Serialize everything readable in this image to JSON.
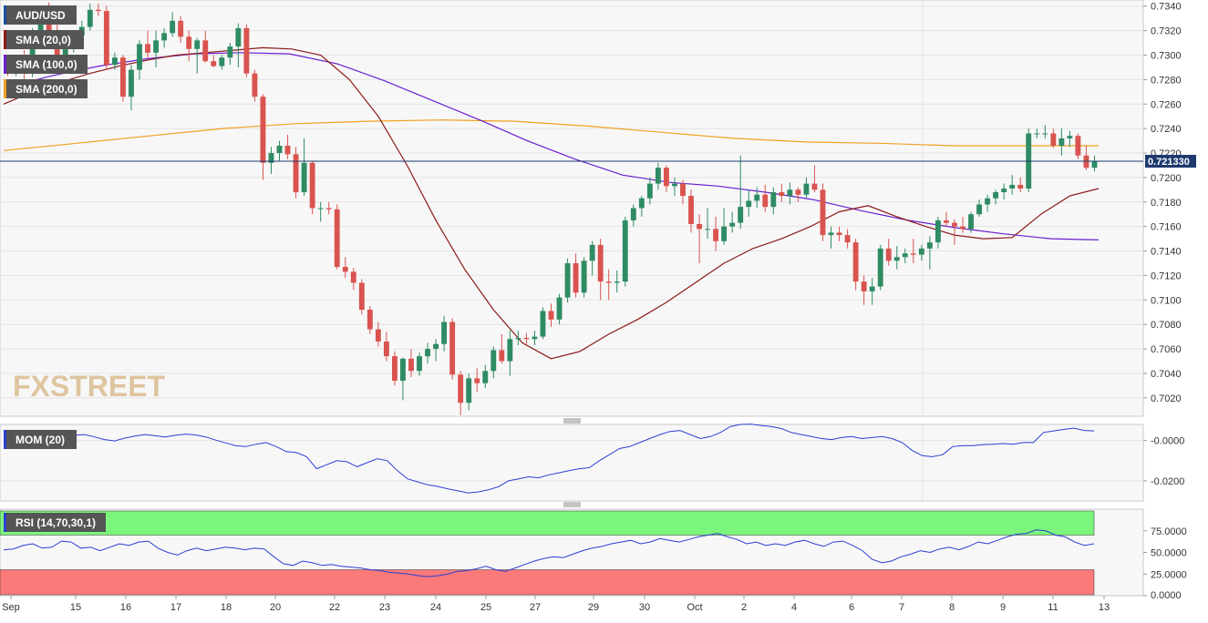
{
  "chart_data": [
    {
      "type": "candlestick",
      "symbol_label": "AUD/USD",
      "ylim": [
        0.7005,
        0.7345
      ],
      "yticks": [
        "0.7340",
        "0.7320",
        "0.7300",
        "0.7280",
        "0.7260",
        "0.7240",
        "0.7220",
        "0.7200",
        "0.7180",
        "0.7160",
        "0.7140",
        "0.7120",
        "0.7100",
        "0.7080",
        "0.7060",
        "0.7040",
        "0.7020"
      ],
      "current_price": 0.72133,
      "current_price_label": "0.721330",
      "watermark": "FXSTREET",
      "indicators": [
        {
          "name": "SMA (20,0)",
          "color": "#8b1a1a"
        },
        {
          "name": "SMA (100,0)",
          "color": "#6a1fd1"
        },
        {
          "name": "SMA (200,0)",
          "color": "#f0a020"
        }
      ],
      "candles": [
        [
          0.729,
          0.7296,
          0.7283,
          0.7287
        ],
        [
          0.7287,
          0.73,
          0.7283,
          0.7295
        ],
        [
          0.7295,
          0.7304,
          0.728,
          0.7285
        ],
        [
          0.7285,
          0.7322,
          0.7282,
          0.7318
        ],
        [
          0.7318,
          0.733,
          0.7315,
          0.7327
        ],
        [
          0.7327,
          0.7343,
          0.7315,
          0.7317
        ],
        [
          0.7317,
          0.7325,
          0.7298,
          0.73
        ],
        [
          0.73,
          0.7312,
          0.7294,
          0.7306
        ],
        [
          0.7306,
          0.732,
          0.7302,
          0.7316
        ],
        [
          0.7316,
          0.7328,
          0.731,
          0.7323
        ],
        [
          0.7323,
          0.7342,
          0.732,
          0.7337
        ],
        [
          0.7337,
          0.7342,
          0.7332,
          0.7336
        ],
        [
          0.7336,
          0.734,
          0.7288,
          0.7292
        ],
        [
          0.7292,
          0.7302,
          0.7288,
          0.7298
        ],
        [
          0.7298,
          0.73,
          0.7262,
          0.7266
        ],
        [
          0.7266,
          0.7292,
          0.7255,
          0.7288
        ],
        [
          0.7288,
          0.7312,
          0.728,
          0.7309
        ],
        [
          0.7309,
          0.732,
          0.7298,
          0.7302
        ],
        [
          0.7302,
          0.732,
          0.729,
          0.7312
        ],
        [
          0.7312,
          0.7322,
          0.7306,
          0.7318
        ],
        [
          0.7318,
          0.7335,
          0.7315,
          0.7328
        ],
        [
          0.7328,
          0.7332,
          0.731,
          0.7315
        ],
        [
          0.7315,
          0.732,
          0.7295,
          0.7305
        ],
        [
          0.7305,
          0.7314,
          0.7285,
          0.7312
        ],
        [
          0.7312,
          0.732,
          0.7294,
          0.7295
        ],
        [
          0.7295,
          0.73,
          0.729,
          0.7291
        ],
        [
          0.7291,
          0.73,
          0.7288,
          0.7298
        ],
        [
          0.7298,
          0.731,
          0.7292,
          0.7307
        ],
        [
          0.7307,
          0.7326,
          0.729,
          0.7322
        ],
        [
          0.7322,
          0.7325,
          0.7282,
          0.7285
        ],
        [
          0.7285,
          0.7288,
          0.7262,
          0.7266
        ],
        [
          0.7266,
          0.7268,
          0.7198,
          0.7212
        ],
        [
          0.7212,
          0.7225,
          0.7203,
          0.722
        ],
        [
          0.722,
          0.723,
          0.7213,
          0.7226
        ],
        [
          0.7226,
          0.7235,
          0.7215,
          0.7219
        ],
        [
          0.7219,
          0.7225,
          0.7183,
          0.7188
        ],
        [
          0.7188,
          0.7232,
          0.7185,
          0.7212
        ],
        [
          0.7212,
          0.7213,
          0.717,
          0.7175
        ],
        [
          0.7175,
          0.718,
          0.7164,
          0.7175
        ],
        [
          0.7175,
          0.718,
          0.717,
          0.7174
        ],
        [
          0.7174,
          0.7178,
          0.7125,
          0.7127
        ],
        [
          0.7127,
          0.7135,
          0.7118,
          0.7123
        ],
        [
          0.7123,
          0.7126,
          0.7108,
          0.7114
        ],
        [
          0.7114,
          0.7117,
          0.7088,
          0.7092
        ],
        [
          0.7092,
          0.7095,
          0.7072,
          0.7076
        ],
        [
          0.7076,
          0.7082,
          0.7062,
          0.7066
        ],
        [
          0.7066,
          0.7074,
          0.705,
          0.7054
        ],
        [
          0.7054,
          0.7058,
          0.703,
          0.7034
        ],
        [
          0.7034,
          0.7053,
          0.7018,
          0.7052
        ],
        [
          0.7052,
          0.706,
          0.7037,
          0.7042
        ],
        [
          0.7042,
          0.7057,
          0.7038,
          0.7054
        ],
        [
          0.7054,
          0.7065,
          0.7048,
          0.706
        ],
        [
          0.706,
          0.7068,
          0.705,
          0.7064
        ],
        [
          0.7064,
          0.7087,
          0.7058,
          0.7082
        ],
        [
          0.7082,
          0.7085,
          0.7035,
          0.7039
        ],
        [
          0.7039,
          0.7042,
          0.7006,
          0.7016
        ],
        [
          0.7016,
          0.704,
          0.701,
          0.7036
        ],
        [
          0.7036,
          0.7044,
          0.7025,
          0.7032
        ],
        [
          0.7032,
          0.7047,
          0.7028,
          0.7042
        ],
        [
          0.7042,
          0.7062,
          0.7036,
          0.7059
        ],
        [
          0.7059,
          0.7072,
          0.7048,
          0.705
        ],
        [
          0.705,
          0.7075,
          0.7038,
          0.7068
        ],
        [
          0.7068,
          0.7075,
          0.7063,
          0.7069
        ],
        [
          0.7069,
          0.7073,
          0.7064,
          0.7068
        ],
        [
          0.7068,
          0.7075,
          0.7063,
          0.707
        ],
        [
          0.707,
          0.7094,
          0.7068,
          0.7091
        ],
        [
          0.7091,
          0.7097,
          0.7078,
          0.7084
        ],
        [
          0.7084,
          0.7105,
          0.708,
          0.7102
        ],
        [
          0.7102,
          0.7134,
          0.7098,
          0.713
        ],
        [
          0.713,
          0.7138,
          0.7102,
          0.7106
        ],
        [
          0.7106,
          0.7135,
          0.7102,
          0.7132
        ],
        [
          0.7132,
          0.7148,
          0.712,
          0.7145
        ],
        [
          0.7145,
          0.715,
          0.71,
          0.7115
        ],
        [
          0.7115,
          0.7125,
          0.71,
          0.7114
        ],
        [
          0.7114,
          0.7124,
          0.7106,
          0.7115
        ],
        [
          0.7115,
          0.7168,
          0.7111,
          0.7165
        ],
        [
          0.7165,
          0.7178,
          0.716,
          0.7175
        ],
        [
          0.7175,
          0.7185,
          0.7168,
          0.7183
        ],
        [
          0.7183,
          0.72,
          0.7178,
          0.7195
        ],
        [
          0.7195,
          0.7212,
          0.719,
          0.7208
        ],
        [
          0.7208,
          0.721,
          0.7188,
          0.7193
        ],
        [
          0.7193,
          0.72,
          0.7185,
          0.7195
        ],
        [
          0.7195,
          0.7198,
          0.7178,
          0.7185
        ],
        [
          0.7185,
          0.719,
          0.7155,
          0.7162
        ],
        [
          0.7162,
          0.717,
          0.713,
          0.7158
        ],
        [
          0.7158,
          0.7175,
          0.715,
          0.7158
        ],
        [
          0.7158,
          0.7168,
          0.714,
          0.7148
        ],
        [
          0.7148,
          0.7175,
          0.7145,
          0.716
        ],
        [
          0.716,
          0.7172,
          0.7155,
          0.7163
        ],
        [
          0.7163,
          0.7218,
          0.7158,
          0.7176
        ],
        [
          0.7176,
          0.719,
          0.7168,
          0.7181
        ],
        [
          0.7181,
          0.7192,
          0.7175,
          0.7186
        ],
        [
          0.7186,
          0.7194,
          0.7172,
          0.7176
        ],
        [
          0.7176,
          0.7192,
          0.717,
          0.7188
        ],
        [
          0.7188,
          0.7195,
          0.718,
          0.7185
        ],
        [
          0.7185,
          0.7196,
          0.7178,
          0.719
        ],
        [
          0.719,
          0.7192,
          0.718,
          0.7186
        ],
        [
          0.7186,
          0.72,
          0.7183,
          0.7195
        ],
        [
          0.7195,
          0.721,
          0.7188,
          0.719
        ],
        [
          0.719,
          0.7195,
          0.7148,
          0.7153
        ],
        [
          0.7153,
          0.716,
          0.7142,
          0.7155
        ],
        [
          0.7155,
          0.716,
          0.7148,
          0.7153
        ],
        [
          0.7153,
          0.7158,
          0.7142,
          0.7147
        ],
        [
          0.7147,
          0.715,
          0.7108,
          0.7115
        ],
        [
          0.7115,
          0.712,
          0.7096,
          0.7107
        ],
        [
          0.7107,
          0.7118,
          0.7096,
          0.7111
        ],
        [
          0.7111,
          0.7145,
          0.7108,
          0.7142
        ],
        [
          0.7142,
          0.715,
          0.7128,
          0.7132
        ],
        [
          0.7132,
          0.7144,
          0.7125,
          0.7135
        ],
        [
          0.7135,
          0.7142,
          0.713,
          0.7138
        ],
        [
          0.7138,
          0.715,
          0.713,
          0.7137
        ],
        [
          0.7137,
          0.7145,
          0.7132,
          0.7142
        ],
        [
          0.7142,
          0.7152,
          0.7125,
          0.7147
        ],
        [
          0.7147,
          0.7168,
          0.7142,
          0.7165
        ],
        [
          0.7165,
          0.7172,
          0.716,
          0.7163
        ],
        [
          0.7163,
          0.7166,
          0.7145,
          0.716
        ],
        [
          0.716,
          0.7168,
          0.7155,
          0.7158
        ],
        [
          0.7158,
          0.7172,
          0.7155,
          0.717
        ],
        [
          0.717,
          0.7182,
          0.7168,
          0.7178
        ],
        [
          0.7178,
          0.7186,
          0.7172,
          0.7183
        ],
        [
          0.7183,
          0.719,
          0.7178,
          0.7188
        ],
        [
          0.7188,
          0.7195,
          0.7182,
          0.7191
        ],
        [
          0.7191,
          0.7202,
          0.7186,
          0.7194
        ],
        [
          0.7194,
          0.72,
          0.7188,
          0.7191
        ],
        [
          0.7191,
          0.724,
          0.7188,
          0.7236
        ],
        [
          0.7236,
          0.724,
          0.7232,
          0.7236
        ],
        [
          0.7236,
          0.7243,
          0.7232,
          0.7236
        ],
        [
          0.7236,
          0.724,
          0.7224,
          0.7226
        ],
        [
          0.7226,
          0.724,
          0.7218,
          0.7232
        ],
        [
          0.7232,
          0.7238,
          0.7225,
          0.7234
        ],
        [
          0.7234,
          0.7236,
          0.7215,
          0.7218
        ],
        [
          0.7218,
          0.7226,
          0.7206,
          0.7208
        ],
        [
          0.7208,
          0.7218,
          0.7205,
          0.7213
        ]
      ],
      "sma20": [
        0.726,
        0.727,
        0.7278,
        0.7285,
        0.7291,
        0.7296,
        0.73,
        0.7302,
        0.7304,
        0.7306,
        0.7305,
        0.73,
        0.728,
        0.725,
        0.721,
        0.7165,
        0.7125,
        0.7092,
        0.7065,
        0.7052,
        0.7058,
        0.7072,
        0.7084,
        0.7098,
        0.7114,
        0.713,
        0.7142,
        0.715,
        0.716,
        0.7172,
        0.7177,
        0.7168,
        0.716,
        0.7153,
        0.715,
        0.7151,
        0.717,
        0.7185,
        0.7191
      ],
      "sma100": [
        0.7273,
        0.7283,
        0.7291,
        0.7297,
        0.7301,
        0.7302,
        0.7301,
        0.7293,
        0.7279,
        0.7263,
        0.7247,
        0.723,
        0.7215,
        0.7202,
        0.7196,
        0.7193,
        0.7188,
        0.7182,
        0.7173,
        0.7165,
        0.7159,
        0.7154,
        0.715,
        0.7149
      ],
      "sma200": [
        0.7222,
        0.7228,
        0.7234,
        0.724,
        0.7244,
        0.7246,
        0.7247,
        0.7246,
        0.7242,
        0.7237,
        0.7232,
        0.7229,
        0.7228,
        0.7226,
        0.7226,
        0.7226
      ],
      "days": [
        "Sep",
        "15",
        "16",
        "17",
        "18",
        "20",
        "22",
        "23",
        "24",
        "25",
        "27",
        "29",
        "30",
        "Oct",
        "2",
        "4",
        "6",
        "7",
        "8",
        "9",
        "11",
        "13"
      ]
    },
    {
      "type": "line",
      "name": "MOM (20)",
      "ylim": [
        -0.03,
        0.008
      ],
      "yticks": [
        "-0.0000",
        "-0.0200"
      ],
      "values": [
        0.001,
        0.002,
        0.0012,
        0.0008,
        -0.0008,
        0.0004,
        0.001,
        0.0026,
        0.003,
        0.0018,
        0.0005,
        -0.0002,
        0.0012,
        0.0022,
        0.003,
        0.0024,
        0.0018,
        0.0026,
        0.0032,
        0.0028,
        0.0018,
        0.0002,
        -0.0012,
        -0.0026,
        -0.003,
        -0.0018,
        -0.001,
        -0.003,
        -0.0055,
        -0.006,
        -0.008,
        -0.014,
        -0.012,
        -0.01,
        -0.0105,
        -0.013,
        -0.011,
        -0.009,
        -0.01,
        -0.015,
        -0.019,
        -0.0205,
        -0.022,
        -0.0228,
        -0.024,
        -0.025,
        -0.026,
        -0.0255,
        -0.0245,
        -0.023,
        -0.02,
        -0.019,
        -0.018,
        -0.0185,
        -0.017,
        -0.016,
        -0.015,
        -0.014,
        -0.0135,
        -0.01,
        -0.007,
        -0.004,
        -0.003,
        -0.001,
        0.001,
        0.003,
        0.0045,
        0.005,
        0.003,
        0.001,
        0.002,
        0.004,
        0.007,
        0.008,
        0.0082,
        0.0075,
        0.007,
        0.006,
        0.004,
        0.003,
        0.002,
        0.001,
        0.0005,
        0.0015,
        0.002,
        0.001,
        0.0015,
        0.002,
        0.001,
        -0.001,
        -0.005,
        -0.0075,
        -0.008,
        -0.007,
        -0.003,
        -0.0025,
        -0.0025,
        -0.002,
        -0.0018,
        -0.0015,
        -0.0018,
        -0.001,
        -0.001,
        0.004,
        0.0048,
        0.0055,
        0.0062,
        0.005,
        0.0048
      ]
    },
    {
      "type": "line",
      "name": "RSI (14,70,30,1)",
      "ylim": [
        0,
        100
      ],
      "upper": 70,
      "lower": 30,
      "yticks": [
        "75.0000",
        "50.0000",
        "25.0000",
        "0.0000"
      ],
      "values": [
        53,
        54,
        58,
        60,
        55,
        56,
        63,
        62,
        55,
        56,
        52,
        56,
        60,
        58,
        62,
        63,
        55,
        50,
        47,
        52,
        55,
        52,
        54,
        56,
        55,
        53,
        55,
        54,
        45,
        37,
        35,
        40,
        38,
        35,
        36,
        34,
        33,
        32,
        30,
        29,
        27,
        26,
        25,
        23,
        22,
        23,
        25,
        28,
        29,
        31,
        34,
        30,
        28,
        32,
        36,
        40,
        43,
        45,
        44,
        48,
        52,
        55,
        57,
        60,
        62,
        64,
        60,
        62,
        66,
        64,
        62,
        65,
        68,
        70,
        72,
        68,
        65,
        60,
        62,
        58,
        60,
        58,
        62,
        64,
        60,
        57,
        62,
        63,
        58,
        52,
        42,
        38,
        40,
        45,
        48,
        52,
        50,
        54,
        56,
        53,
        57,
        62,
        60,
        64,
        68,
        71,
        72,
        76,
        75,
        70,
        68,
        62,
        58,
        60
      ]
    }
  ]
}
